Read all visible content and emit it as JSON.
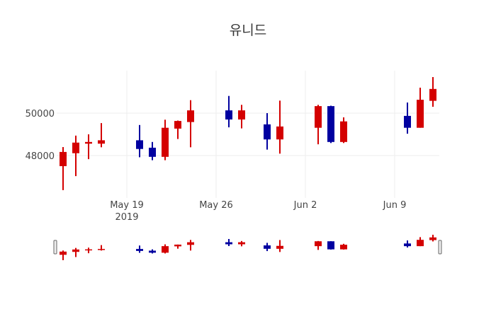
{
  "chart_data": {
    "type": "candlestick",
    "title": "유니드",
    "x_tick_labels": [
      "May 19\n2019",
      "May 26",
      "Jun 2",
      "Jun 9"
    ],
    "x_tick_dates": [
      "2019-05-19",
      "2019-05-26",
      "2019-06-02",
      "2019-06-09"
    ],
    "y_tick_labels": [
      "48000",
      "50000"
    ],
    "y_ticks": [
      48000,
      50000
    ],
    "ylim": [
      46000,
      52000
    ],
    "xlim": [
      "2019-05-13 12:00",
      "2019-06-12 12:00"
    ],
    "increasing_color": "#d40000",
    "decreasing_color": "#0000a0",
    "grid": true,
    "rangeslider": true,
    "candles": [
      {
        "date": "2019-05-14",
        "open": 47500,
        "high": 48400,
        "low": 46370,
        "close": 48170
      },
      {
        "date": "2019-05-15",
        "open": 48110,
        "high": 48940,
        "low": 47030,
        "close": 48610
      },
      {
        "date": "2019-05-16",
        "open": 48560,
        "high": 49000,
        "low": 47830,
        "close": 48640
      },
      {
        "date": "2019-05-17",
        "open": 48560,
        "high": 49530,
        "low": 48390,
        "close": 48720
      },
      {
        "date": "2019-05-20",
        "open": 48720,
        "high": 49440,
        "low": 47920,
        "close": 48310
      },
      {
        "date": "2019-05-21",
        "open": 48370,
        "high": 48640,
        "low": 47780,
        "close": 47940
      },
      {
        "date": "2019-05-22",
        "open": 47940,
        "high": 49690,
        "low": 47780,
        "close": 49310
      },
      {
        "date": "2019-05-23",
        "open": 49270,
        "high": 49650,
        "low": 48780,
        "close": 49630
      },
      {
        "date": "2019-05-24",
        "open": 49580,
        "high": 50610,
        "low": 48390,
        "close": 50130
      },
      {
        "date": "2019-05-27",
        "open": 50130,
        "high": 50810,
        "low": 49330,
        "close": 49700
      },
      {
        "date": "2019-05-28",
        "open": 49700,
        "high": 50390,
        "low": 49280,
        "close": 50130
      },
      {
        "date": "2019-05-30",
        "open": 49470,
        "high": 50000,
        "low": 48280,
        "close": 48760
      },
      {
        "date": "2019-05-31",
        "open": 48760,
        "high": 50590,
        "low": 48090,
        "close": 49370
      },
      {
        "date": "2019-06-03",
        "open": 49310,
        "high": 50390,
        "low": 48530,
        "close": 50330
      },
      {
        "date": "2019-06-04",
        "open": 50330,
        "high": 50350,
        "low": 48590,
        "close": 48640
      },
      {
        "date": "2019-06-05",
        "open": 48640,
        "high": 49800,
        "low": 48590,
        "close": 49610
      },
      {
        "date": "2019-06-10",
        "open": 49870,
        "high": 50500,
        "low": 49030,
        "close": 49310
      },
      {
        "date": "2019-06-11",
        "open": 49310,
        "high": 51200,
        "low": 49310,
        "close": 50630
      },
      {
        "date": "2019-06-12",
        "open": 50580,
        "high": 51700,
        "low": 50300,
        "close": 51140
      }
    ]
  }
}
